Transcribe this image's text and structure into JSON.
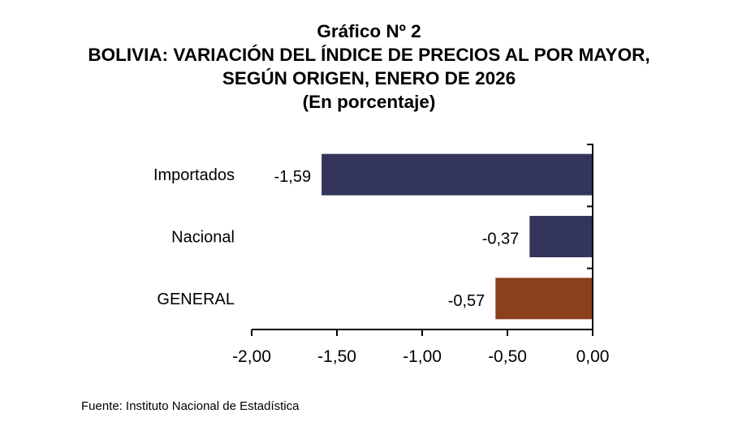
{
  "title_lines": [
    "Gráfico Nº 2",
    "BOLIVIA: VARIACIÓN DEL ÍNDICE DE PRECIOS AL POR MAYOR,",
    "SEGÚN ORIGEN, ENERO DE 2026",
    "(En porcentaje)"
  ],
  "source": "Fuente: Instituto Nacional de Estadística",
  "chart_data": {
    "type": "bar",
    "orientation": "horizontal",
    "title": "Gráfico Nº 2 — BOLIVIA: VARIACIÓN DEL ÍNDICE DE PRECIOS AL POR MAYOR, SEGÚN ORIGEN, ENERO DE 2026 (En porcentaje)",
    "categories": [
      "Importados",
      "Nacional",
      "GENERAL"
    ],
    "values": [
      -1.59,
      -0.37,
      -0.57
    ],
    "value_labels": [
      "-1,59",
      "-0,37",
      "-0,57"
    ],
    "colors": [
      "#34355a",
      "#34355a",
      "#8c3f1c"
    ],
    "xlabel": "",
    "ylabel": "",
    "xlim": [
      -2.0,
      0.0
    ],
    "xticks": [
      -2.0,
      -1.5,
      -1.0,
      -0.5,
      0.0
    ],
    "xtick_labels": [
      "-2,00",
      "-1,50",
      "-1,00",
      "-0,50",
      "0,00"
    ],
    "grid": false,
    "legend": "none"
  }
}
